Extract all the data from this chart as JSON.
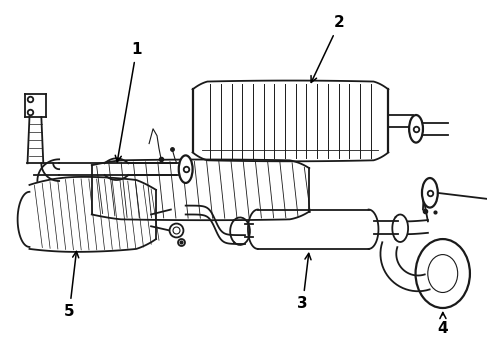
{
  "background_color": "#ffffff",
  "line_color": "#1a1a1a",
  "label_color": "#000000",
  "figsize": [
    4.9,
    3.6
  ],
  "dpi": 100
}
